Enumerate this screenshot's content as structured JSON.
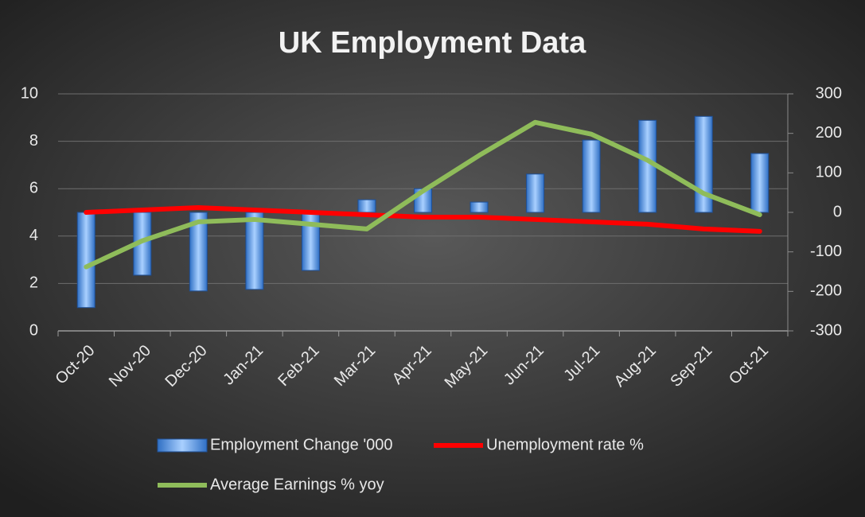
{
  "chart_data": {
    "type": "bar-line",
    "title": "UK Employment Data",
    "categories": [
      "Oct-20",
      "Nov-20",
      "Dec-20",
      "Jan-21",
      "Feb-21",
      "Mar-21",
      "Apr-21",
      "May-21",
      "Jun-21",
      "Jul-21",
      "Aug-21",
      "Sep-21",
      "Oct-21"
    ],
    "series": [
      {
        "name": "Employment Change '000",
        "type": "bar",
        "axis": "y2",
        "color": "#4f8fdc",
        "values": [
          -241,
          -159,
          -199,
          -195,
          -147,
          32,
          60,
          26,
          97,
          183,
          233,
          243,
          149
        ]
      },
      {
        "name": "Unemployment rate %",
        "type": "line",
        "color": "#ff0000",
        "values": [
          5.0,
          5.1,
          5.2,
          5.1,
          5.0,
          4.9,
          4.8,
          4.8,
          4.7,
          4.6,
          4.5,
          4.3,
          4.2
        ]
      },
      {
        "name": "Average Earnings % yoy",
        "type": "line",
        "color": "#8fbc5a",
        "values": [
          2.7,
          3.8,
          4.6,
          4.7,
          4.5,
          4.3,
          5.9,
          7.4,
          8.8,
          8.3,
          7.2,
          5.8,
          4.9
        ]
      }
    ],
    "ylim": [
      0,
      10
    ],
    "yticks": [
      0,
      2,
      4,
      6,
      8,
      10
    ],
    "y2lim": [
      -300,
      300
    ],
    "y2ticks": [
      -300,
      -200,
      -100,
      0,
      100,
      200,
      300
    ],
    "grid": true,
    "legend": "bottom"
  }
}
